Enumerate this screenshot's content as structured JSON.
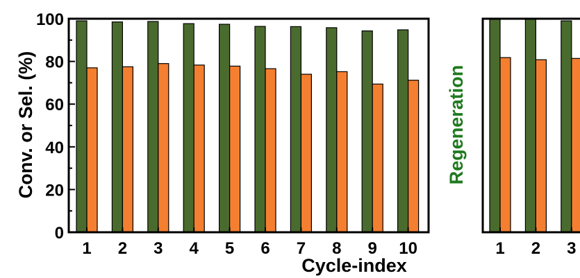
{
  "chart_data": [
    {
      "type": "bar",
      "categories": [
        "1",
        "2",
        "3",
        "4",
        "5",
        "6",
        "7",
        "8",
        "9",
        "10"
      ],
      "series": [
        {
          "values": [
            99,
            98.5,
            98.7,
            97.7,
            97.4,
            96.4,
            96.3,
            95.8,
            94.3,
            94.8
          ],
          "color": "#4a6b2e"
        },
        {
          "values": [
            77,
            77.5,
            79,
            78.3,
            77.8,
            76.6,
            74,
            75.2,
            69.4,
            71.2
          ],
          "color": "#f47f30"
        }
      ],
      "xlabel": "Cycle-index",
      "ylabel": "Conv. or Sel. (%)",
      "ylim": [
        0,
        100
      ],
      "yticks": [
        "0",
        "20",
        "40",
        "60",
        "80",
        "100"
      ],
      "grid": false
    },
    {
      "type": "bar",
      "categories": [
        "1",
        "2",
        "3"
      ],
      "series": [
        {
          "values": [
            100,
            100,
            99
          ],
          "color": "#4a6b2e"
        },
        {
          "values": [
            81.8,
            80.8,
            81.4
          ],
          "color": "#f47f30"
        }
      ],
      "ylim": [
        0,
        100
      ],
      "grid": false
    }
  ],
  "regeneration_label": "Regeneration",
  "colors": {
    "regeneration_text": "#1f7a1f"
  }
}
